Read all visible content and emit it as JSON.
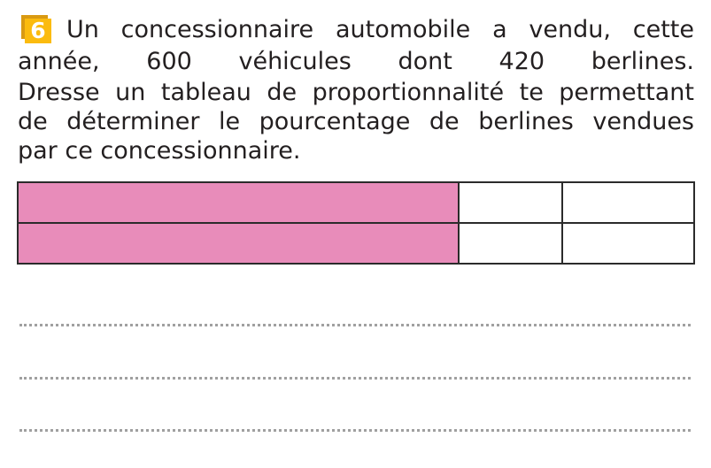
{
  "exercise": {
    "number": "6",
    "badge_color": "#fbbb0f",
    "lines": [
      "Un concessionnaire automobile a vendu, cette",
      "année, 600 véhicules dont 420 berlines.",
      "Dresse un tableau de proportionnalité te permettant",
      "de déterminer le pourcentage de berlines vendues",
      "par ce concessionnaire."
    ]
  },
  "table": {
    "rows": 2,
    "columns": 3,
    "header_color": "#e88cba",
    "cells": [
      [
        "",
        "",
        ""
      ],
      [
        "",
        "",
        ""
      ]
    ]
  },
  "answer_lines": 3
}
